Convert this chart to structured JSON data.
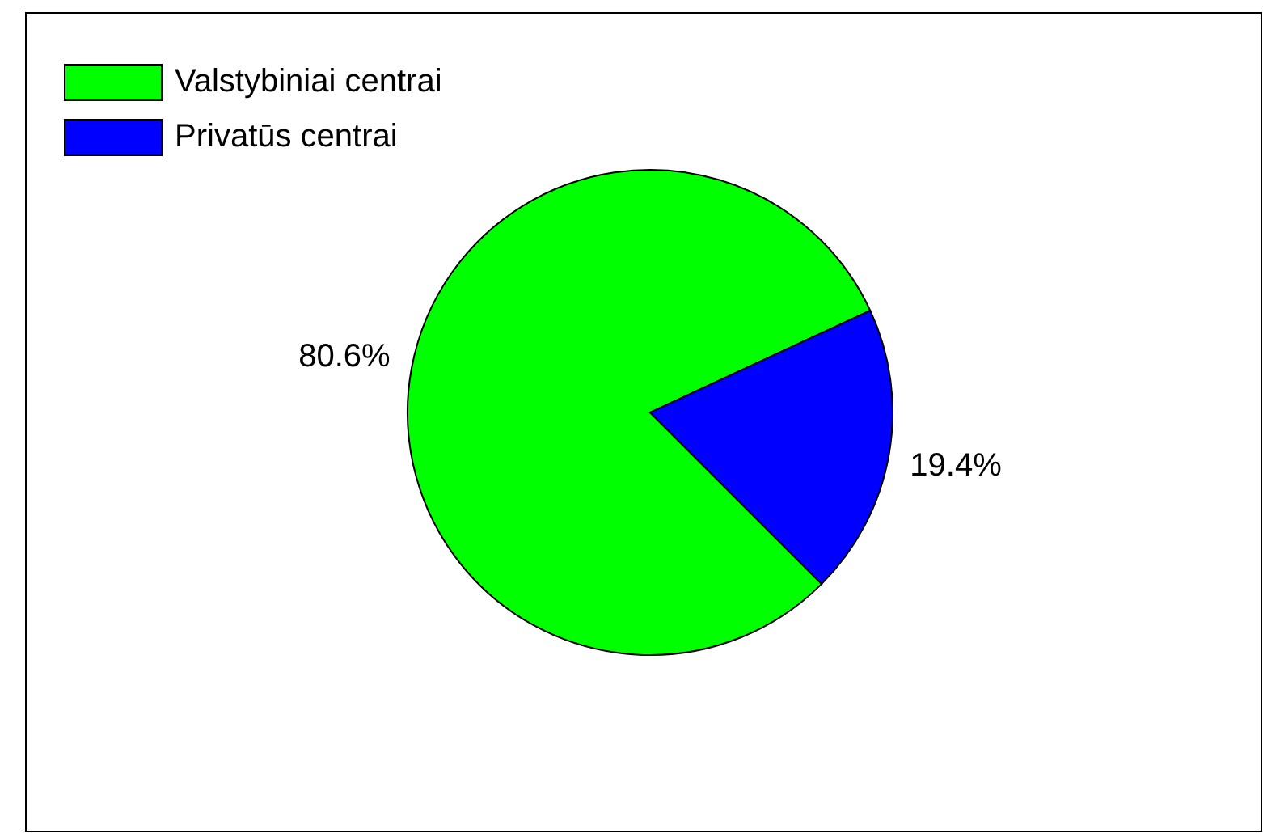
{
  "chart_data": {
    "type": "pie",
    "categories": [
      "Valstybiniai centrai",
      "Privatūs centrai"
    ],
    "values": [
      80.6,
      19.4
    ],
    "colors": [
      "#00ff00",
      "#0000ff"
    ],
    "legend": "top left",
    "value_labels": [
      "80.6%",
      "19.4%"
    ]
  }
}
